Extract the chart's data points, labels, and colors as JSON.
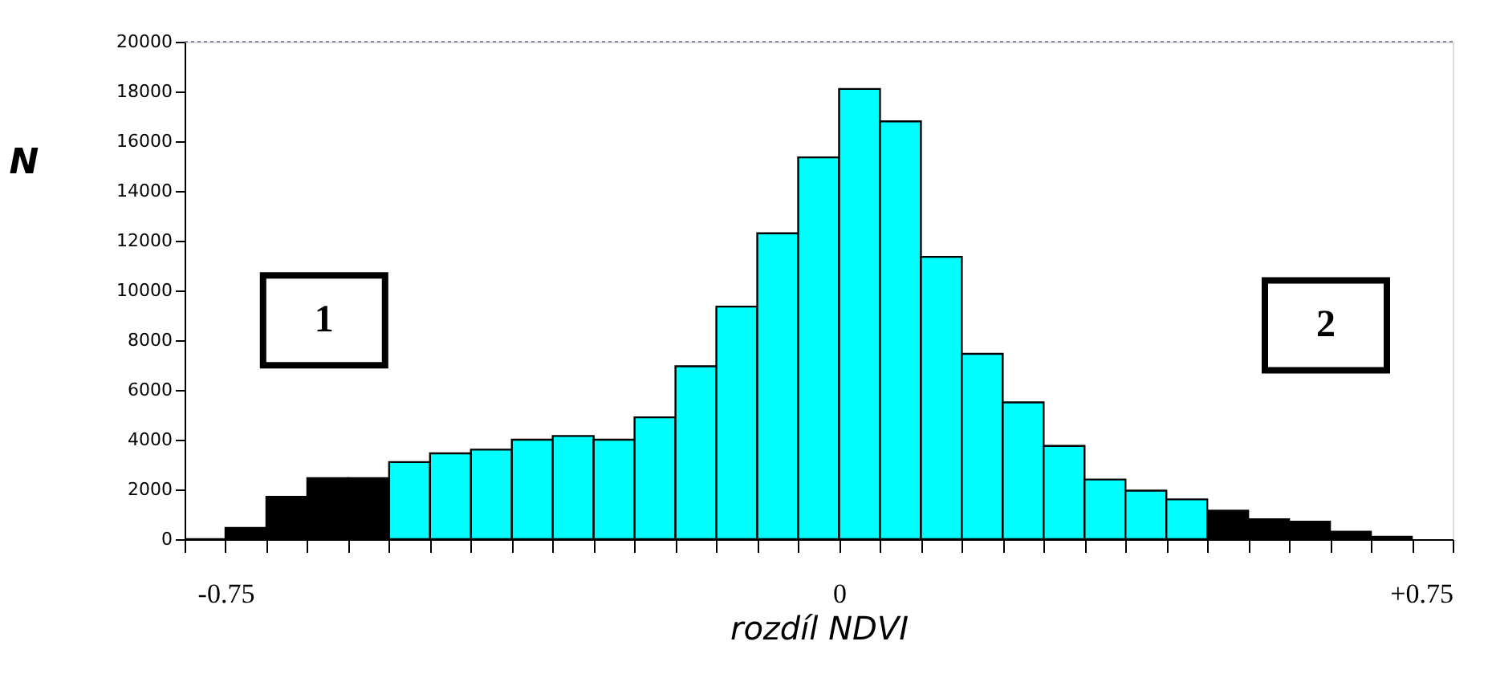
{
  "chart_data": {
    "type": "histogram",
    "xlabel": "rozdíl NDVI",
    "ylabel": "N",
    "bins": [
      -0.8,
      -0.75,
      -0.7,
      -0.65,
      -0.6,
      -0.55,
      -0.5,
      -0.45,
      -0.4,
      -0.35,
      -0.3,
      -0.25,
      -0.2,
      -0.15,
      -0.1,
      -0.05,
      0,
      0.05,
      0.1,
      0.15,
      0.2,
      0.25,
      0.3,
      0.35,
      0.4,
      0.45,
      0.5,
      0.55,
      0.6,
      0.65,
      0.7
    ],
    "values": [
      0,
      450,
      1700,
      2450,
      2450,
      3100,
      3450,
      3600,
      4000,
      4150,
      4000,
      4900,
      6950,
      9350,
      12300,
      15350,
      18100,
      16800,
      11350,
      7450,
      5500,
      3750,
      2400,
      1950,
      1600,
      1150,
      800,
      700,
      300,
      100
    ],
    "colors": [
      "#000000",
      "#000000",
      "#000000",
      "#000000",
      "#000000",
      "#00ffff",
      "#00ffff",
      "#00ffff",
      "#00ffff",
      "#00ffff",
      "#00ffff",
      "#00ffff",
      "#00ffff",
      "#00ffff",
      "#00ffff",
      "#00ffff",
      "#00ffff",
      "#00ffff",
      "#00ffff",
      "#00ffff",
      "#00ffff",
      "#00ffff",
      "#00ffff",
      "#00ffff",
      "#00ffff",
      "#000000",
      "#000000",
      "#000000",
      "#000000",
      "#000000"
    ],
    "xlim": [
      -0.8,
      0.75
    ],
    "xticks": [
      {
        "value": -0.8,
        "label": null
      },
      {
        "value": -0.75,
        "label": "-0.75"
      },
      {
        "value": -0.7,
        "label": null
      },
      {
        "value": -0.65,
        "label": null
      },
      {
        "value": -0.6,
        "label": null
      },
      {
        "value": -0.55,
        "label": null
      },
      {
        "value": -0.5,
        "label": null
      },
      {
        "value": -0.45,
        "label": null
      },
      {
        "value": -0.4,
        "label": null
      },
      {
        "value": -0.35,
        "label": null
      },
      {
        "value": -0.3,
        "label": null
      },
      {
        "value": -0.25,
        "label": null
      },
      {
        "value": -0.2,
        "label": null
      },
      {
        "value": -0.15,
        "label": null
      },
      {
        "value": -0.1,
        "label": null
      },
      {
        "value": -0.05,
        "label": null
      },
      0,
      {
        "value": 0.05,
        "label": null
      },
      {
        "value": 0.1,
        "label": null
      },
      {
        "value": 0.15,
        "label": null
      },
      {
        "value": 0.2,
        "label": null
      },
      {
        "value": 0.25,
        "label": null
      },
      {
        "value": 0.3,
        "label": null
      },
      {
        "value": 0.35,
        "label": null
      },
      {
        "value": 0.4,
        "label": null
      },
      {
        "value": 0.45,
        "label": null
      },
      {
        "value": 0.5,
        "label": null
      },
      {
        "value": 0.55,
        "label": null
      },
      {
        "value": 0.6,
        "label": null
      },
      {
        "value": 0.65,
        "label": null
      },
      {
        "value": 0.7,
        "label": null
      },
      {
        "value": 0.75,
        "label": "+0.75"
      }
    ],
    "ylim": [
      0,
      20000
    ],
    "yticks": [
      0,
      2000,
      4000,
      6000,
      8000,
      10000,
      12000,
      14000,
      16000,
      18000,
      20000
    ],
    "annotations": [
      "1",
      "2"
    ],
    "grid": false
  }
}
